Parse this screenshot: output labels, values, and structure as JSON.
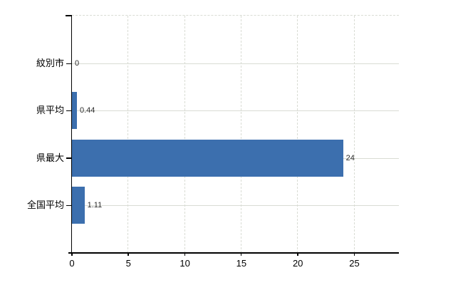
{
  "chart_data": {
    "type": "bar",
    "orientation": "horizontal",
    "title": "",
    "categories": [
      "紋別市",
      "県平均",
      "県最大",
      "全国平均"
    ],
    "values": [
      0,
      0.44,
      24,
      1.11
    ],
    "value_labels": [
      "0",
      "0.44",
      "24",
      "1.11"
    ],
    "x_ticks": [
      0,
      5,
      10,
      15,
      20,
      25
    ],
    "x_tick_labels": [
      "0",
      "5",
      "10",
      "15",
      "20",
      "25"
    ],
    "xlim": [
      0,
      29
    ],
    "grid": "on",
    "legend": "none",
    "colors": {
      "bar": "#3c6fae",
      "gridline": "#d9dcd4",
      "axis": "#000000",
      "value_text": "#2b2b2b",
      "label_text": "#000000"
    }
  }
}
